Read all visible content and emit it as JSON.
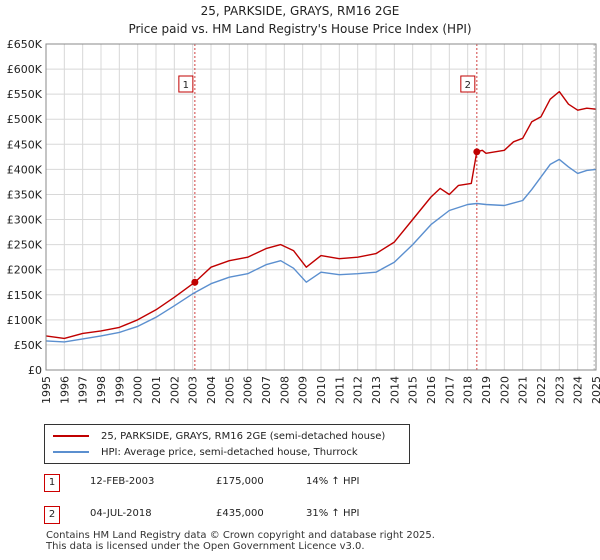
{
  "header": {
    "title": "25, PARKSIDE, GRAYS, RM16 2GE",
    "subtitle": "Price paid vs. HM Land Registry's House Price Index (HPI)"
  },
  "colors": {
    "property": "#c00000",
    "hpi": "#5b8fcf",
    "vline": "#d04040"
  },
  "chart_data": {
    "type": "line",
    "title": "25, PARKSIDE, GRAYS, RM16 2GE",
    "subtitle": "Price paid vs. HM Land Registry's House Price Index (HPI)",
    "xlabel": "",
    "ylabel": "",
    "xlim": [
      1995,
      2025
    ],
    "ylim": [
      0,
      650000
    ],
    "grid": true,
    "x_ticks": [
      1995,
      1996,
      1997,
      1998,
      1999,
      2000,
      2001,
      2002,
      2003,
      2004,
      2005,
      2006,
      2007,
      2008,
      2009,
      2010,
      2011,
      2012,
      2013,
      2014,
      2015,
      2016,
      2017,
      2018,
      2019,
      2020,
      2021,
      2022,
      2023,
      2024,
      2025
    ],
    "y_ticks": [
      {
        "value": 0,
        "label": "£0"
      },
      {
        "value": 50000,
        "label": "£50K"
      },
      {
        "value": 100000,
        "label": "£100K"
      },
      {
        "value": 150000,
        "label": "£150K"
      },
      {
        "value": 200000,
        "label": "£200K"
      },
      {
        "value": 250000,
        "label": "£250K"
      },
      {
        "value": 300000,
        "label": "£300K"
      },
      {
        "value": 350000,
        "label": "£350K"
      },
      {
        "value": 400000,
        "label": "£400K"
      },
      {
        "value": 450000,
        "label": "£450K"
      },
      {
        "value": 500000,
        "label": "£500K"
      },
      {
        "value": 550000,
        "label": "£550K"
      },
      {
        "value": 600000,
        "label": "£600K"
      },
      {
        "value": 650000,
        "label": "£650K"
      }
    ],
    "series": [
      {
        "name": "25, PARKSIDE, GRAYS, RM16 2GE (semi-detached house)",
        "color": "#c00000",
        "x": [
          1995,
          1996,
          1997,
          1998,
          1999,
          2000,
          2001,
          2002,
          2003.12,
          2003.5,
          2004,
          2005,
          2006,
          2007,
          2007.8,
          2008.5,
          2009.2,
          2010,
          2011,
          2012,
          2013,
          2014,
          2015,
          2016,
          2016.5,
          2017,
          2017.5,
          2018.2,
          2018.5,
          2018.8,
          2019,
          2020,
          2020.5,
          2021,
          2021.5,
          2022,
          2022.5,
          2023,
          2023.5,
          2024,
          2024.5,
          2025
        ],
        "y": [
          68000,
          63000,
          73000,
          78000,
          85000,
          100000,
          120000,
          145000,
          175000,
          188000,
          205000,
          218000,
          225000,
          242000,
          250000,
          238000,
          205000,
          228000,
          222000,
          225000,
          232000,
          255000,
          300000,
          345000,
          362000,
          350000,
          368000,
          372000,
          435000,
          438000,
          432000,
          438000,
          455000,
          462000,
          495000,
          505000,
          540000,
          555000,
          530000,
          518000,
          522000,
          520000
        ]
      },
      {
        "name": "HPI: Average price, semi-detached house, Thurrock",
        "color": "#5b8fcf",
        "x": [
          1995,
          1996,
          1997,
          1998,
          1999,
          2000,
          2001,
          2002,
          2003,
          2004,
          2005,
          2006,
          2007,
          2007.8,
          2008.5,
          2009.2,
          2010,
          2011,
          2012,
          2013,
          2014,
          2015,
          2016,
          2017,
          2018,
          2018.5,
          2019,
          2020,
          2021,
          2021.5,
          2022,
          2022.5,
          2023,
          2023.5,
          2024,
          2024.5,
          2025
        ],
        "y": [
          58000,
          56000,
          62000,
          68000,
          75000,
          87000,
          105000,
          128000,
          152000,
          172000,
          185000,
          192000,
          210000,
          218000,
          203000,
          175000,
          195000,
          190000,
          192000,
          195000,
          215000,
          250000,
          290000,
          318000,
          330000,
          332000,
          330000,
          328000,
          338000,
          360000,
          385000,
          410000,
          420000,
          405000,
          392000,
          398000,
          400000
        ]
      }
    ],
    "sales": [
      {
        "id": "1",
        "x": 2003.12,
        "y": 175000
      },
      {
        "id": "2",
        "x": 2018.5,
        "y": 435000
      }
    ]
  },
  "legend": {
    "items": [
      {
        "label": "25, PARKSIDE, GRAYS, RM16 2GE (semi-detached house)",
        "color": "#c00000"
      },
      {
        "label": "HPI: Average price, semi-detached house, Thurrock",
        "color": "#5b8fcf"
      }
    ]
  },
  "sales_table": [
    {
      "id": "1",
      "date": "12-FEB-2003",
      "price": "£175,000",
      "hpi": "14% ↑ HPI"
    },
    {
      "id": "2",
      "date": "04-JUL-2018",
      "price": "£435,000",
      "hpi": "31% ↑ HPI"
    }
  ],
  "footer": {
    "line1": "Contains HM Land Registry data © Crown copyright and database right 2025.",
    "line2": "This data is licensed under the Open Government Licence v3.0."
  }
}
